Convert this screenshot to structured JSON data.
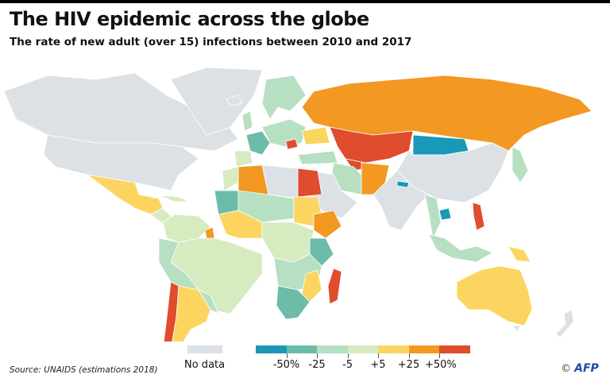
{
  "header": {
    "title": "The HIV epidemic across the globe",
    "subtitle": "The rate of new adult (over 15) infections between 2010 and 2017"
  },
  "legend": {
    "no_data_label": "No data",
    "no_data_color": "#dbe1e5",
    "bins": [
      {
        "color": "#1a98b8"
      },
      {
        "color": "#6dbca9"
      },
      {
        "color": "#b6e0c1"
      },
      {
        "color": "#d6ebc0"
      },
      {
        "color": "#fcd560"
      },
      {
        "color": "#f39822"
      },
      {
        "color": "#e04c2e"
      }
    ],
    "ticks": [
      "-50%",
      "-25",
      "-5",
      "+5",
      "+25",
      "+50%"
    ]
  },
  "footer": {
    "source": "Source: UNAIDS (estimations 2018)",
    "credit_symbol": "©",
    "credit_brand": "AFP"
  }
}
